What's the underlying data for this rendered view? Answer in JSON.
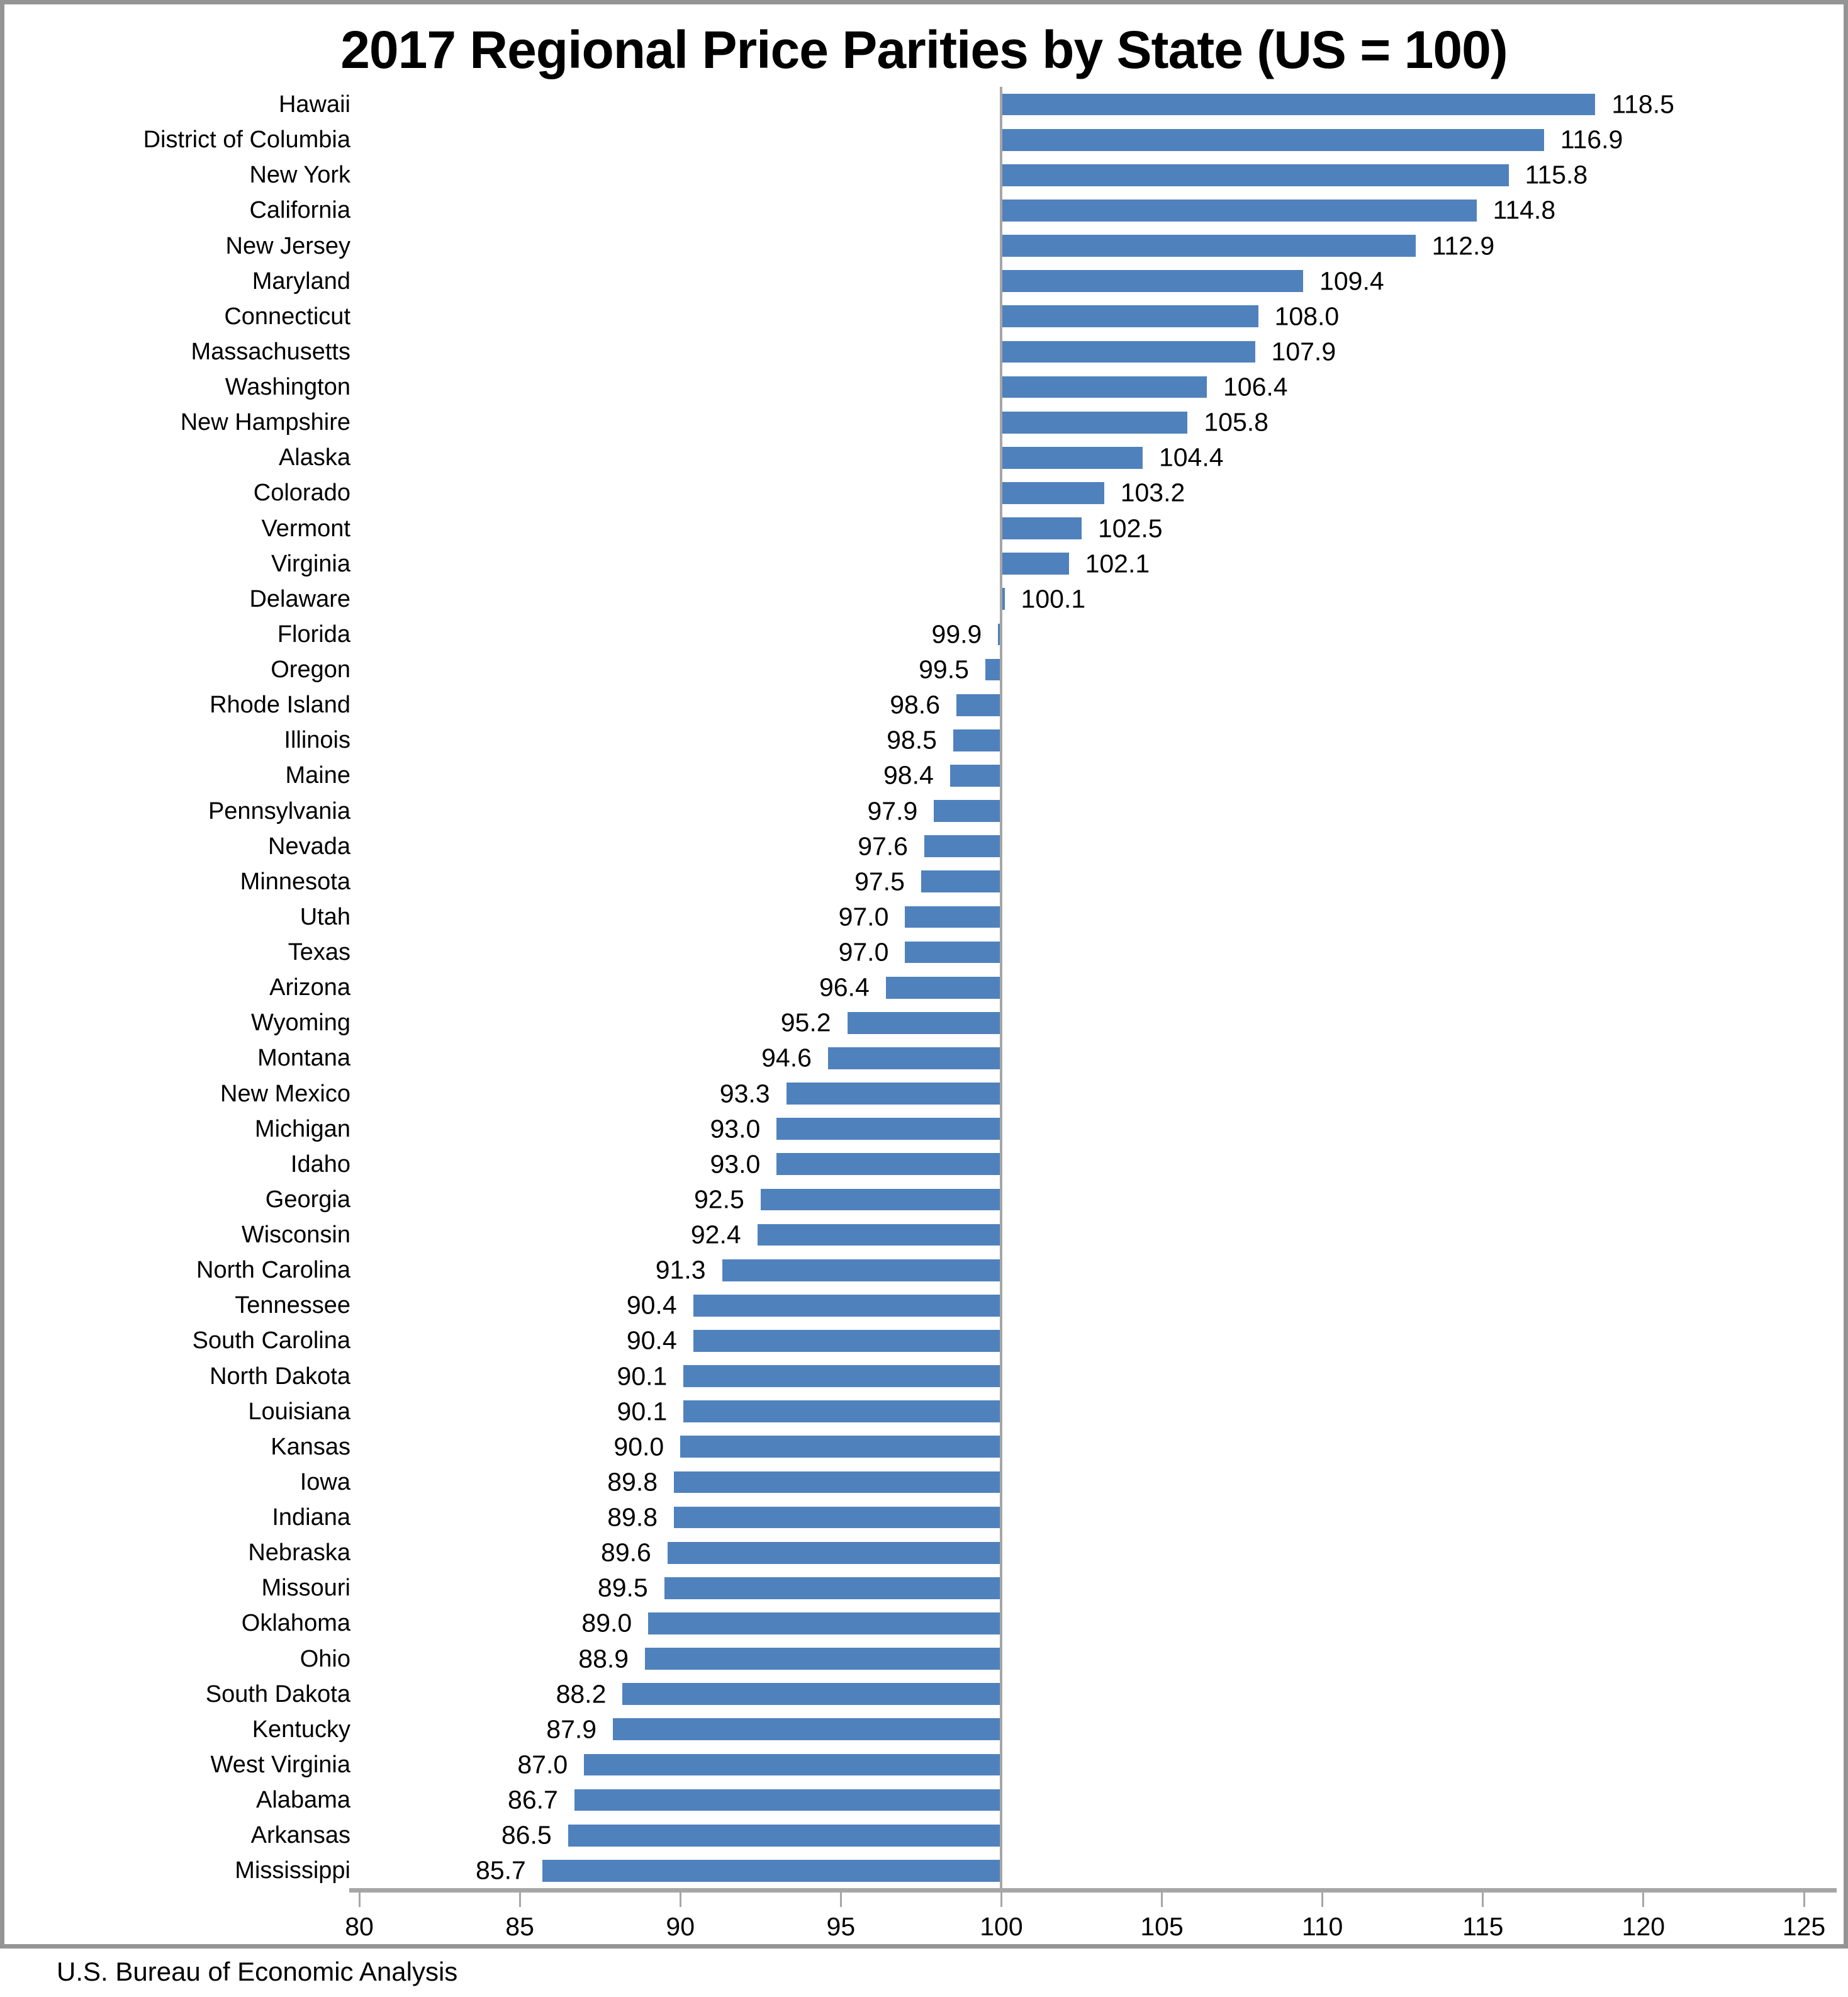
{
  "source": "U.S. Bureau of Economic Analysis",
  "colors": {
    "bar": "#4f81bd",
    "axis_line": "#a6a6a6",
    "gridline_100": "#a6a6a6",
    "frame_border": "#949494",
    "text": "#000000"
  },
  "chart_data": {
    "type": "bar",
    "orientation": "horizontal",
    "title": "2017 Regional Price Parities by State (US = 100)",
    "xlabel": "",
    "ylabel": "",
    "xlim": [
      80,
      125
    ],
    "x_ticks": [
      80,
      85,
      90,
      95,
      100,
      105,
      110,
      115,
      120,
      125
    ],
    "baseline": 100,
    "bar_anchor": "baseline",
    "value_label_format": "one_decimal",
    "grid": "off",
    "legend": "none",
    "categories": [
      "Hawaii",
      "District of Columbia",
      "New York",
      "California",
      "New Jersey",
      "Maryland",
      "Connecticut",
      "Massachusetts",
      "Washington",
      "New Hampshire",
      "Alaska",
      "Colorado",
      "Vermont",
      "Virginia",
      "Delaware",
      "Florida",
      "Oregon",
      "Rhode Island",
      "Illinois",
      "Maine",
      "Pennsylvania",
      "Nevada",
      "Minnesota",
      "Utah",
      "Texas",
      "Arizona",
      "Wyoming",
      "Montana",
      "New Mexico",
      "Michigan",
      "Idaho",
      "Georgia",
      "Wisconsin",
      "North Carolina",
      "Tennessee",
      "South Carolina",
      "North Dakota",
      "Louisiana",
      "Kansas",
      "Iowa",
      "Indiana",
      "Nebraska",
      "Missouri",
      "Oklahoma",
      "Ohio",
      "South Dakota",
      "Kentucky",
      "West Virginia",
      "Alabama",
      "Arkansas",
      "Mississippi"
    ],
    "values": [
      118.5,
      116.9,
      115.8,
      114.8,
      112.9,
      109.4,
      108.0,
      107.9,
      106.4,
      105.8,
      104.4,
      103.2,
      102.5,
      102.1,
      100.1,
      99.9,
      99.5,
      98.6,
      98.5,
      98.4,
      97.9,
      97.6,
      97.5,
      97.0,
      97.0,
      96.4,
      95.2,
      94.6,
      93.3,
      93.0,
      93.0,
      92.5,
      92.4,
      91.3,
      90.4,
      90.4,
      90.1,
      90.1,
      90.0,
      89.8,
      89.8,
      89.6,
      89.5,
      89.0,
      88.9,
      88.2,
      87.9,
      87.0,
      86.7,
      86.5,
      85.7
    ]
  }
}
